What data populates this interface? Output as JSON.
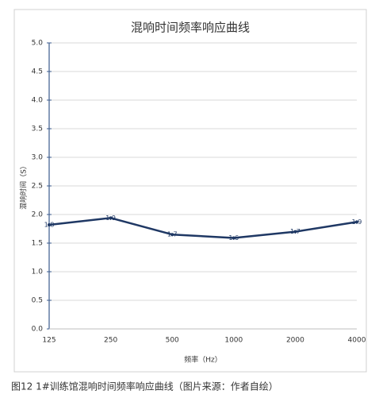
{
  "chart_data": {
    "type": "line",
    "title": "混响时间频率响应曲线",
    "x_label": "频率（Hz）",
    "y_label": "混响时间（S）",
    "categories": [
      "125",
      "250",
      "500",
      "1000",
      "2000",
      "4000"
    ],
    "series": [
      {
        "name": "混响时间",
        "color": "#1f3864",
        "values": [
          1.82,
          1.94,
          1.65,
          1.59,
          1.7,
          1.87
        ],
        "value_labels": [
          "1.8",
          "1.9",
          "1.7",
          "1.6",
          "1.7",
          "1.9"
        ]
      }
    ],
    "ylim": [
      0,
      5
    ],
    "yticks": [
      {
        "value": 0,
        "label": "0.0"
      },
      0.5,
      {
        "value": 1,
        "label": "1.0"
      },
      1.5,
      {
        "value": 2,
        "label": "2.0"
      },
      2.5,
      {
        "value": 3,
        "label": "3.0"
      },
      3.5,
      {
        "value": 4,
        "label": "4.0"
      },
      4.5,
      {
        "value": 5,
        "label": "5.0"
      }
    ],
    "grid": true
  },
  "caption": "图12 1#训练馆混响时间频率响应曲线（图片来源：作者自绘）"
}
